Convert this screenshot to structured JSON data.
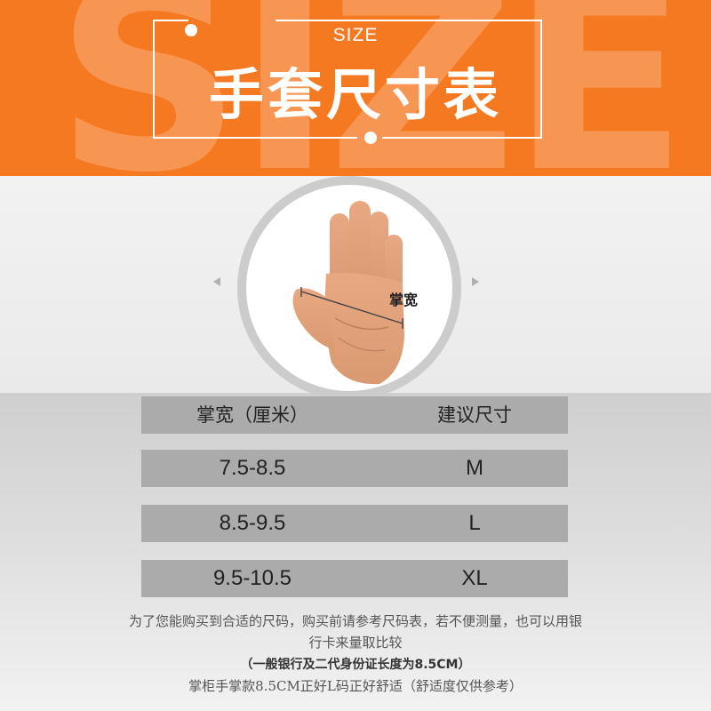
{
  "header": {
    "watermark": "SIZE",
    "size_label": "SIZE",
    "title": "手套尺寸表",
    "colors": {
      "background": "#f57921",
      "text": "#ffffff"
    }
  },
  "diagram": {
    "palm_label": "掌宽"
  },
  "size_table": {
    "headers": [
      "掌宽（厘米）",
      "建议尺寸"
    ],
    "rows": [
      [
        "7.5-8.5",
        "M"
      ],
      [
        "8.5-9.5",
        "L"
      ],
      [
        "9.5-10.5",
        "XL"
      ]
    ]
  },
  "notes": {
    "line1": "为了您能购买到合适的尺码，购买前请参考尺码表，若不便测量，也可以用银",
    "line2": "行卡来量取比较",
    "line3": "（一般银行及二代身份证长度为8.5CM）",
    "line4": "掌柜手掌款8.5CM正好L码正好舒适（舒适度仅供参考）"
  }
}
